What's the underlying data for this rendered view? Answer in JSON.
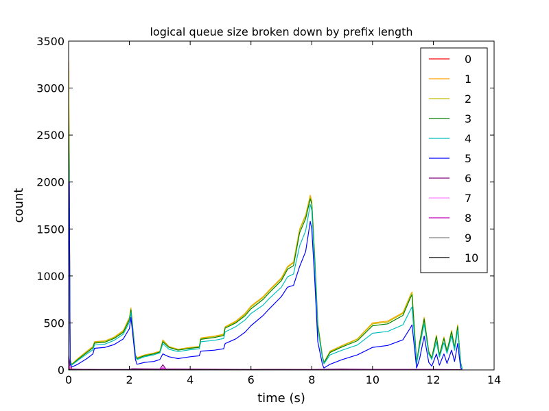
{
  "chart_data": {
    "type": "line",
    "title": "logical queue size broken down by prefix length",
    "xlabel": "time (s)",
    "ylabel": "count",
    "xlim": [
      0,
      14
    ],
    "ylim": [
      0,
      3500
    ],
    "xticks": [
      0,
      2,
      4,
      6,
      8,
      10,
      12,
      14
    ],
    "yticks": [
      0,
      500,
      1000,
      1500,
      2000,
      2500,
      3000,
      3500
    ],
    "grid": false,
    "legend_position": "top-right",
    "series": [
      {
        "name": "0",
        "color": "#ff0000",
        "x": [
          0,
          0.02,
          0.05,
          0.1,
          0.5,
          1.0,
          2.0,
          3.0,
          4.0,
          6.0,
          8.0,
          10.0,
          12.0,
          12.95
        ],
        "y": [
          3280,
          2000,
          120,
          3,
          2,
          1,
          1,
          1,
          1,
          1,
          1,
          1,
          1,
          0
        ]
      },
      {
        "name": "1",
        "color": "#ffa500",
        "x": [
          0,
          0.02,
          0.05,
          0.1,
          0.3,
          0.6,
          0.8,
          0.85,
          1.2,
          1.5,
          1.8,
          2.0,
          2.05,
          2.2,
          2.25,
          2.5,
          2.8,
          3.0,
          3.1,
          3.3,
          3.6,
          4.0,
          4.3,
          4.35,
          4.8,
          5.1,
          5.15,
          5.5,
          5.8,
          6.0,
          6.4,
          6.6,
          7.0,
          7.2,
          7.4,
          7.6,
          7.8,
          7.95,
          8.0,
          8.1,
          8.2,
          8.35,
          8.4,
          8.6,
          9.0,
          9.5,
          10.0,
          10.5,
          11.0,
          11.25,
          11.3,
          11.45,
          11.55,
          11.7,
          11.85,
          11.95,
          12.1,
          12.2,
          12.35,
          12.45,
          12.6,
          12.7,
          12.8,
          12.9,
          12.95
        ],
        "y": [
          3300,
          2400,
          110,
          60,
          120,
          200,
          250,
          300,
          310,
          350,
          420,
          560,
          660,
          160,
          130,
          160,
          180,
          200,
          320,
          250,
          220,
          240,
          250,
          340,
          360,
          380,
          460,
          520,
          600,
          680,
          780,
          850,
          980,
          1100,
          1150,
          1500,
          1650,
          1860,
          1800,
          1200,
          500,
          150,
          80,
          200,
          260,
          330,
          500,
          520,
          610,
          800,
          830,
          80,
          300,
          560,
          200,
          130,
          370,
          160,
          350,
          200,
          420,
          240,
          480,
          80,
          10
        ]
      },
      {
        "name": "2",
        "color": "#bfbf00",
        "x": [
          0,
          0.02,
          0.05,
          0.1,
          0.3,
          0.6,
          0.8,
          0.85,
          1.2,
          1.5,
          1.8,
          2.0,
          2.05,
          2.2,
          2.25,
          2.5,
          2.8,
          3.0,
          3.1,
          3.3,
          3.6,
          4.0,
          4.3,
          4.35,
          4.8,
          5.1,
          5.15,
          5.5,
          5.8,
          6.0,
          6.4,
          6.6,
          7.0,
          7.2,
          7.4,
          7.6,
          7.8,
          7.95,
          8.0,
          8.1,
          8.2,
          8.35,
          8.4,
          8.6,
          9.0,
          9.5,
          10.0,
          10.5,
          11.0,
          11.25,
          11.3,
          11.45,
          11.55,
          11.7,
          11.85,
          11.95,
          12.1,
          12.2,
          12.35,
          12.45,
          12.6,
          12.7,
          12.8,
          12.9,
          12.95
        ],
        "y": [
          3200,
          2350,
          105,
          58,
          115,
          195,
          245,
          295,
          305,
          345,
          410,
          550,
          650,
          155,
          125,
          155,
          175,
          195,
          310,
          245,
          215,
          235,
          245,
          335,
          355,
          375,
          455,
          510,
          590,
          670,
          770,
          840,
          970,
          1090,
          1140,
          1490,
          1640,
          1840,
          1790,
          1190,
          490,
          145,
          78,
          195,
          255,
          325,
          490,
          510,
          600,
          790,
          820,
          78,
          295,
          550,
          195,
          128,
          365,
          158,
          345,
          198,
          415,
          238,
          470,
          78,
          10
        ]
      },
      {
        "name": "3",
        "color": "#008000",
        "x": [
          0,
          0.02,
          0.05,
          0.1,
          0.3,
          0.6,
          0.8,
          0.85,
          1.2,
          1.5,
          1.8,
          2.0,
          2.05,
          2.2,
          2.25,
          2.5,
          2.8,
          3.0,
          3.1,
          3.3,
          3.6,
          4.0,
          4.3,
          4.35,
          4.8,
          5.1,
          5.15,
          5.5,
          5.8,
          6.0,
          6.4,
          6.6,
          7.0,
          7.2,
          7.4,
          7.6,
          7.8,
          7.95,
          8.0,
          8.1,
          8.2,
          8.35,
          8.4,
          8.6,
          9.0,
          9.5,
          10.0,
          10.5,
          11.0,
          11.25,
          11.3,
          11.45,
          11.55,
          11.7,
          11.85,
          11.95,
          12.1,
          12.2,
          12.35,
          12.45,
          12.6,
          12.7,
          12.8,
          12.9,
          12.95
        ],
        "y": [
          2650,
          2100,
          100,
          55,
          110,
          185,
          235,
          285,
          295,
          335,
          400,
          535,
          640,
          150,
          120,
          150,
          170,
          190,
          300,
          240,
          210,
          230,
          240,
          325,
          345,
          365,
          445,
          500,
          575,
          650,
          750,
          820,
          950,
          1070,
          1110,
          1460,
          1610,
          1820,
          1770,
          1170,
          470,
          140,
          75,
          185,
          245,
          310,
          470,
          490,
          580,
          770,
          800,
          75,
          285,
          540,
          190,
          125,
          355,
          155,
          335,
          195,
          405,
          235,
          460,
          75,
          10
        ]
      },
      {
        "name": "4",
        "color": "#00bfbf",
        "x": [
          0,
          0.02,
          0.05,
          0.1,
          0.3,
          0.6,
          0.8,
          0.85,
          1.2,
          1.5,
          1.8,
          2.0,
          2.05,
          2.2,
          2.25,
          2.5,
          2.8,
          3.0,
          3.1,
          3.3,
          3.6,
          4.0,
          4.3,
          4.35,
          4.8,
          5.1,
          5.15,
          5.5,
          5.8,
          6.0,
          6.4,
          6.6,
          7.0,
          7.2,
          7.4,
          7.6,
          7.8,
          7.95,
          8.0,
          8.1,
          8.2,
          8.35,
          8.4,
          8.6,
          9.0,
          9.5,
          10.0,
          10.5,
          11.0,
          11.25,
          11.3,
          11.45,
          11.55,
          11.7,
          11.85,
          11.95,
          12.1,
          12.2,
          12.35,
          12.45,
          12.6,
          12.7,
          12.8,
          12.9,
          12.95
        ],
        "y": [
          2300,
          1900,
          90,
          50,
          100,
          170,
          215,
          265,
          275,
          315,
          380,
          510,
          610,
          140,
          110,
          140,
          160,
          180,
          280,
          220,
          195,
          215,
          225,
          300,
          315,
          335,
          405,
          460,
          530,
          600,
          690,
          760,
          880,
          990,
          1020,
          1320,
          1480,
          1760,
          1700,
          1120,
          440,
          125,
          65,
          160,
          210,
          265,
          390,
          410,
          480,
          640,
          670,
          65,
          250,
          490,
          170,
          110,
          300,
          135,
          290,
          175,
          360,
          210,
          420,
          65,
          10
        ]
      },
      {
        "name": "5",
        "color": "#0000ff",
        "x": [
          0,
          0.02,
          0.05,
          0.1,
          0.3,
          0.6,
          0.8,
          0.85,
          1.2,
          1.5,
          1.8,
          2.0,
          2.05,
          2.2,
          2.25,
          2.5,
          2.8,
          3.0,
          3.1,
          3.3,
          3.6,
          4.0,
          4.3,
          4.35,
          4.8,
          5.1,
          5.15,
          5.5,
          5.8,
          6.0,
          6.4,
          6.6,
          7.0,
          7.2,
          7.4,
          7.6,
          7.8,
          7.95,
          8.0,
          8.1,
          8.2,
          8.35,
          8.4,
          8.6,
          9.0,
          9.5,
          10.0,
          10.5,
          11.0,
          11.25,
          11.3,
          11.45,
          11.55,
          11.7,
          11.85,
          11.95,
          12.1,
          12.2,
          12.35,
          12.45,
          12.6,
          12.7,
          12.8,
          12.9,
          12.95
        ],
        "y": [
          1250,
          2000,
          60,
          30,
          60,
          120,
          170,
          230,
          240,
          270,
          330,
          440,
          560,
          110,
          60,
          80,
          90,
          110,
          170,
          140,
          120,
          140,
          150,
          200,
          210,
          225,
          280,
          330,
          400,
          470,
          580,
          650,
          780,
          880,
          900,
          1100,
          1260,
          1580,
          1500,
          950,
          300,
          60,
          20,
          60,
          110,
          160,
          240,
          260,
          320,
          450,
          480,
          20,
          120,
          360,
          80,
          40,
          170,
          50,
          170,
          70,
          210,
          90,
          280,
          20,
          5
        ]
      },
      {
        "name": "6",
        "color": "#800080",
        "x": [
          0,
          0.05,
          0.1,
          0.5,
          1.0,
          2.0,
          2.1,
          3.0,
          3.1,
          3.2,
          4.0,
          6.0,
          7.0,
          8.0,
          9.0,
          10.0,
          11.0,
          12.0,
          12.95
        ],
        "y": [
          150,
          5,
          8,
          6,
          5,
          6,
          12,
          8,
          55,
          10,
          8,
          5,
          6,
          5,
          8,
          6,
          6,
          6,
          2
        ]
      },
      {
        "name": "7",
        "color": "#ff80ff",
        "x": [
          0,
          0.05,
          1.0,
          3.0,
          3.1,
          3.2,
          6.0,
          9.0,
          12.0,
          12.95
        ],
        "y": [
          60,
          4,
          3,
          3,
          30,
          4,
          3,
          3,
          3,
          1
        ]
      },
      {
        "name": "8",
        "color": "#bf00bf",
        "x": [
          0,
          0.05,
          1.0,
          3.0,
          3.1,
          3.2,
          6.0,
          9.0,
          12.0,
          12.95
        ],
        "y": [
          40,
          3,
          2,
          2,
          20,
          3,
          2,
          2,
          2,
          1
        ]
      },
      {
        "name": "9",
        "color": "#808080",
        "x": [
          0,
          0.05,
          6.0,
          12.95
        ],
        "y": [
          20,
          1,
          1,
          0
        ]
      },
      {
        "name": "10",
        "color": "#000000",
        "x": [
          0,
          0.05,
          6.0,
          12.95
        ],
        "y": [
          10,
          1,
          1,
          0
        ]
      }
    ]
  }
}
